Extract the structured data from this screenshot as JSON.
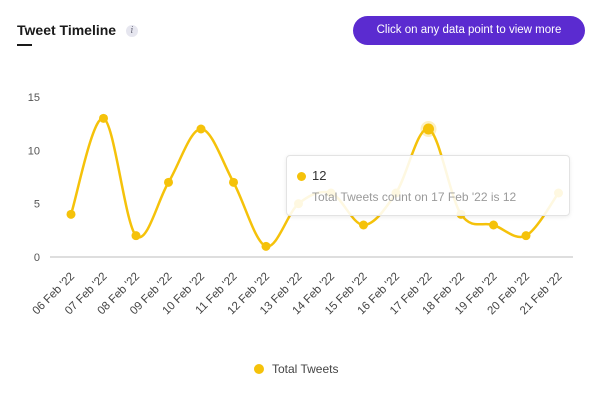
{
  "header": {
    "title": "Tweet Timeline",
    "info_icon": "i",
    "cta_label": "Click on any data point to view more"
  },
  "colors": {
    "series": "#f5c20a",
    "button": "#5b2bd0",
    "axis": "#bdbdbd"
  },
  "chart_data": {
    "type": "line",
    "title": "",
    "xlabel": "",
    "ylabel": "",
    "categories": [
      "06 Feb '22",
      "07 Feb '22",
      "08 Feb '22",
      "09 Feb '22",
      "10 Feb '22",
      "11 Feb '22",
      "12 Feb '22",
      "13 Feb '22",
      "14 Feb '22",
      "15 Feb '22",
      "16 Feb '22",
      "17 Feb '22",
      "18 Feb '22",
      "19 Feb '22",
      "20 Feb '22",
      "21 Feb '22"
    ],
    "series": [
      {
        "name": "Total Tweets",
        "values": [
          4,
          13,
          2,
          7,
          12,
          7,
          1,
          5,
          6,
          3,
          6,
          12,
          4,
          3,
          2,
          6
        ]
      }
    ],
    "ylim": [
      0,
      15
    ],
    "yticks": [
      0,
      5,
      10,
      15
    ],
    "grid": false,
    "legend_position": "bottom-center",
    "smooth": true
  },
  "tooltip": {
    "value": "12",
    "text": "Total Tweets count on 17 Feb '22 is 12"
  }
}
